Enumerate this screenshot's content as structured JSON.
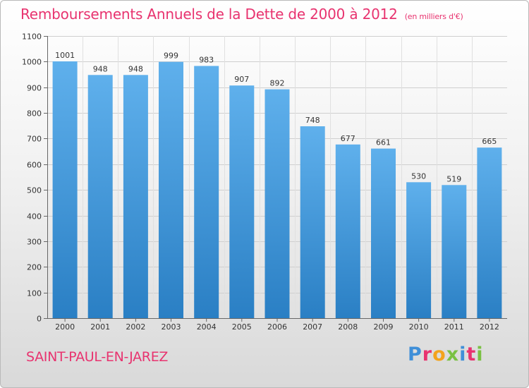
{
  "header": {
    "title": "Remboursements Annuels de la Dette de 2000 à 2012",
    "subtitle": "(en milliers d'€)"
  },
  "footer": {
    "commune": "SAINT-PAUL-EN-JAREZ",
    "logo_text": "Proxiti"
  },
  "colors": {
    "accent": "#e8336f",
    "bar_top": "#5fb0ec",
    "bar_bottom": "#2a7fc4"
  },
  "chart_data": {
    "type": "bar",
    "title": "Remboursements Annuels de la Dette de 2000 à 2012",
    "subtitle": "(en milliers d'€)",
    "categories": [
      "2000",
      "2001",
      "2002",
      "2003",
      "2004",
      "2005",
      "2006",
      "2007",
      "2008",
      "2009",
      "2010",
      "2011",
      "2012"
    ],
    "values": [
      1001,
      948,
      948,
      999,
      983,
      907,
      892,
      748,
      677,
      661,
      530,
      519,
      665
    ],
    "ylim": [
      0,
      1100
    ],
    "yticks": [
      0,
      100,
      200,
      300,
      400,
      500,
      600,
      700,
      800,
      900,
      1000,
      1100
    ],
    "grid": true,
    "data_labels": true
  }
}
